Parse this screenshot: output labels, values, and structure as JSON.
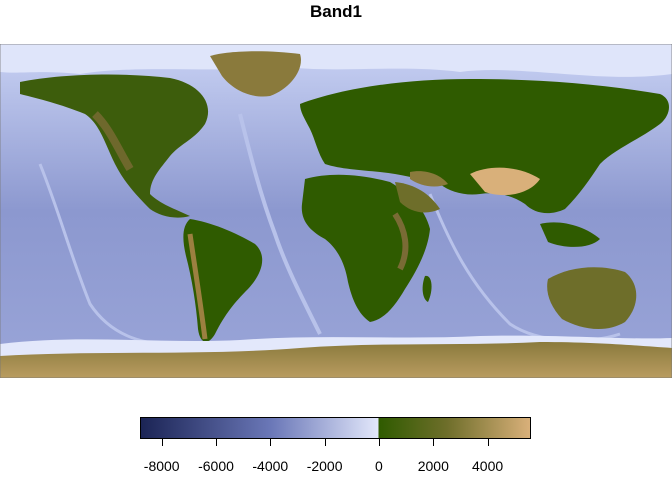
{
  "map": {
    "title": "Band1",
    "layer_name": "Band1",
    "type": "raster-elevation",
    "extent": "global",
    "colors": {
      "ocean_deep": "#1b2455",
      "ocean_mid": "#6b78b8",
      "ocean_shallow": "#e3e8fb",
      "land_low": "#2f5b00",
      "land_mid": "#6e6e2a",
      "land_high": "#d9b07a"
    }
  },
  "legend": {
    "min": -8800,
    "max": 5600,
    "breakpoint": 0,
    "ticks": [
      "-8000",
      "-6000",
      "-4000",
      "-2000",
      "0",
      "2000",
      "4000"
    ]
  }
}
